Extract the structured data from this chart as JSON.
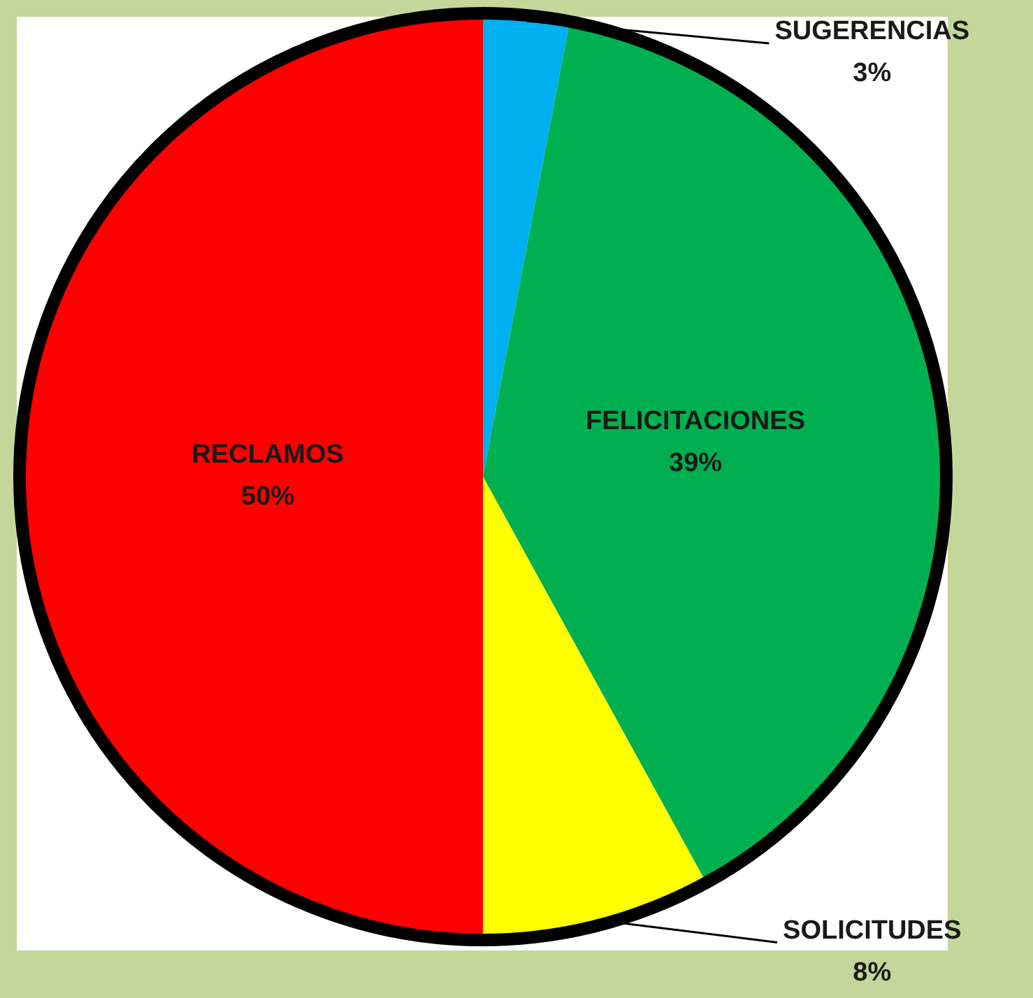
{
  "chart_data": {
    "type": "pie",
    "categories": [
      "SUGERENCIAS",
      "FELICITACIONES",
      "SOLICITUDES",
      "RECLAMOS"
    ],
    "values": [
      3,
      39,
      8,
      50
    ],
    "colors": [
      "#00b0f0",
      "#00b050",
      "#ffff00",
      "#ff0000"
    ],
    "value_labels": [
      "3%",
      "39%",
      "8%",
      "50%"
    ]
  }
}
